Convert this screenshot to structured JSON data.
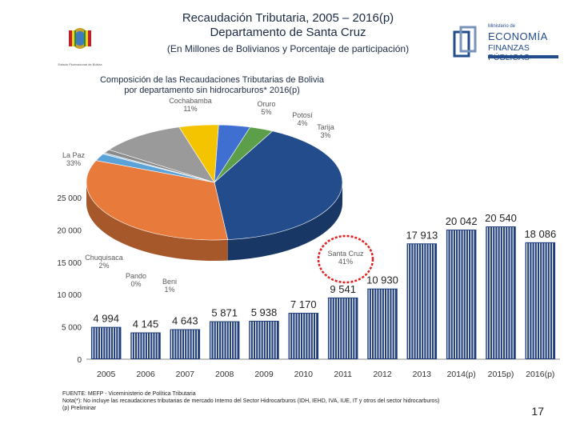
{
  "header": {
    "title_line1": "Recaudación Tributaria, 2005 – 2016(p)",
    "title_line2": "Departamento de Santa Cruz",
    "subtitle": "(En Millones de Bolivianos y Porcentaje de participación)",
    "left_logo_label": "Estado Plurinacional de Bolivia",
    "right_logo_line1": "Ministerio de",
    "right_logo_line2": "ECONOMÍA",
    "right_logo_line3": "FINANZAS PÚBLICAS"
  },
  "colors": {
    "bar": "#1f3e7a",
    "bar_stripe": "#ffffff",
    "axis_text": "#333333",
    "highlight_circle": "#e02020"
  },
  "chart_data": [
    {
      "type": "bar",
      "title": "",
      "categories": [
        "2005",
        "2006",
        "2007",
        "2008",
        "2009",
        "2010",
        "2011",
        "2012",
        "2013",
        "2014(p)",
        "2015p)",
        "2016(p)"
      ],
      "values": [
        4994,
        4145,
        4643,
        5871,
        5938,
        7170,
        9541,
        10930,
        17913,
        20042,
        20540,
        18086
      ],
      "value_labels": [
        "4 994",
        "4 145",
        "4 643",
        "5 871",
        "5 938",
        "7 170",
        "9 541",
        "10 930",
        "17 913",
        "20 042",
        "20 540",
        "18 086"
      ],
      "ylim": [
        0,
        25000
      ],
      "yticks": [
        0,
        5000,
        10000,
        15000,
        20000,
        25000
      ],
      "ytick_labels": [
        "0",
        "5 000",
        "10 000",
        "15 000",
        "20 000",
        "25 000"
      ],
      "xlabel": "",
      "ylabel": ""
    },
    {
      "type": "pie",
      "title": "Composición de las Recaudaciones Tributarias de Bolivia por departamento sin hidrocarburos* 2016(p)",
      "slices": [
        {
          "name": "Santa Cruz",
          "value": 41,
          "label": "41%",
          "color": "#234c8c"
        },
        {
          "name": "La Paz",
          "value": 33,
          "label": "33%",
          "color": "#e87a3c"
        },
        {
          "name": "Chuquisaca",
          "value": 2,
          "label": "2%",
          "color": "#5aa2d8"
        },
        {
          "name": "Pando",
          "value": 0,
          "label": "0%",
          "color": "#a8c8e8"
        },
        {
          "name": "Beni",
          "value": 1,
          "label": "1%",
          "color": "#8a8a8a"
        },
        {
          "name": "Cochabamba",
          "value": 11,
          "label": "11%",
          "color": "#9a9a9a"
        },
        {
          "name": "Oruro",
          "value": 5,
          "label": "5%",
          "color": "#f5c400"
        },
        {
          "name": "Potosí",
          "value": 4,
          "label": "4%",
          "color": "#3f6fd0"
        },
        {
          "name": "Tarija",
          "value": 3,
          "label": "3%",
          "color": "#5d9e4a"
        }
      ]
    }
  ],
  "pie_title_line1": "Composición de las Recaudaciones Tributarias de Bolivia",
  "pie_title_line2": "por departamento sin hidrocarburos* 2016(p)",
  "footer": {
    "source": "FUENTE: MEFP - Viceministerio de Política Tributaria",
    "note": "Nota(*): No incluye las recaudaciones tributarias de mercado Interno del Sector Hidrocarburos (IDH, IEHD, IVA, IUE, IT y otros del sector hidrocarburos)",
    "prelim": "(p) Preliminar",
    "page_number": "17"
  }
}
